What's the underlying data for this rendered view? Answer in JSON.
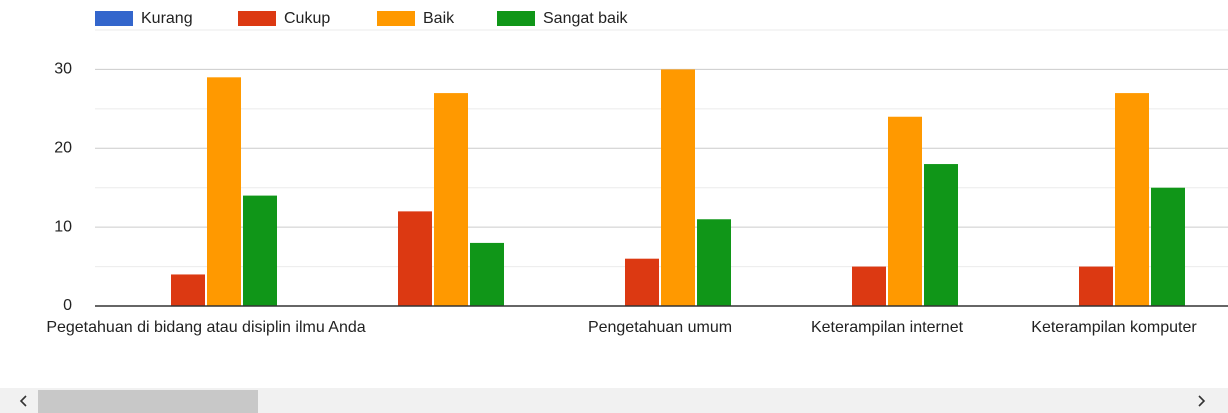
{
  "chart_data": {
    "type": "bar",
    "categories": [
      "Pegetahuan di bidang atau disiplin ilmu Anda",
      null,
      "Pengetahuan umum",
      "Keterampilan internet",
      "Keterampilan komputer"
    ],
    "series": [
      {
        "name": "Kurang",
        "color": "#3366cc",
        "values": [
          0,
          0,
          0,
          0,
          0
        ]
      },
      {
        "name": "Cukup",
        "color": "#dc3912",
        "values": [
          4,
          12,
          6,
          5,
          5
        ]
      },
      {
        "name": "Baik",
        "color": "#ff9900",
        "values": [
          29,
          27,
          30,
          24,
          27
        ]
      },
      {
        "name": "Sangat baik",
        "color": "#109618",
        "values": [
          14,
          8,
          11,
          18,
          15
        ]
      }
    ],
    "ylim": [
      0,
      35
    ],
    "yticks": [
      0,
      10,
      20,
      30
    ],
    "minor_yticks": [
      5,
      15,
      25
    ],
    "grid": true,
    "legend": "top"
  }
}
